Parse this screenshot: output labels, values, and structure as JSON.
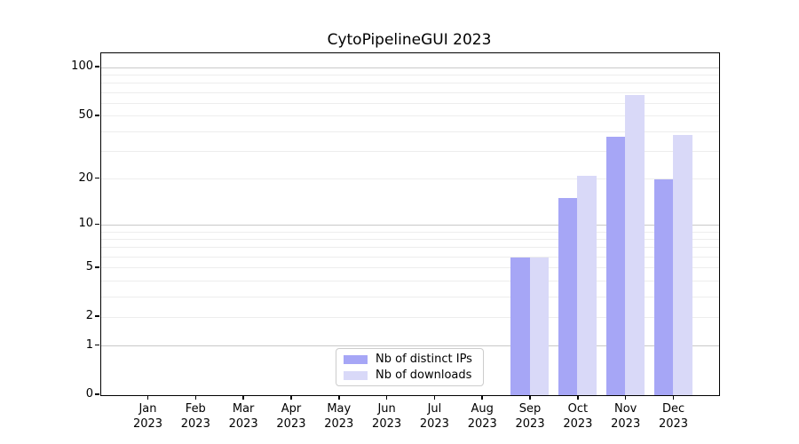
{
  "chart_data": {
    "type": "bar",
    "title": "CytoPipelineGUI 2023",
    "categories": [
      "Jan",
      "Feb",
      "Mar",
      "Apr",
      "May",
      "Jun",
      "Jul",
      "Aug",
      "Sep",
      "Oct",
      "Nov",
      "Dec"
    ],
    "x_year": "2023",
    "series": [
      {
        "name": "Nb of distinct IPs",
        "color": "#a6a6f6",
        "values": [
          0,
          0,
          0,
          0,
          0,
          0,
          0,
          0,
          6,
          15,
          37,
          20
        ]
      },
      {
        "name": "Nb of downloads",
        "color": "#d9d9f8",
        "values": [
          0,
          0,
          0,
          0,
          0,
          0,
          0,
          0,
          6,
          21,
          68,
          38
        ]
      }
    ],
    "y_ticks": [
      0,
      1,
      2,
      5,
      10,
      20,
      50,
      100
    ],
    "y_scale": "log10(value+1)",
    "ylim": [
      0,
      120
    ],
    "grid": true,
    "grid_major_values": [
      1,
      10,
      100
    ],
    "grid_minor_values": [
      2,
      3,
      4,
      5,
      6,
      7,
      8,
      9,
      20,
      30,
      40,
      50,
      60,
      70,
      80,
      90
    ],
    "legend_position": "lower center",
    "xlabel": "",
    "ylabel": ""
  },
  "colors": {
    "axis": "#000000",
    "major_grid": "#c9c9c9",
    "minor_grid": "#ededed",
    "background": "#ffffff",
    "text": "#000000"
  }
}
